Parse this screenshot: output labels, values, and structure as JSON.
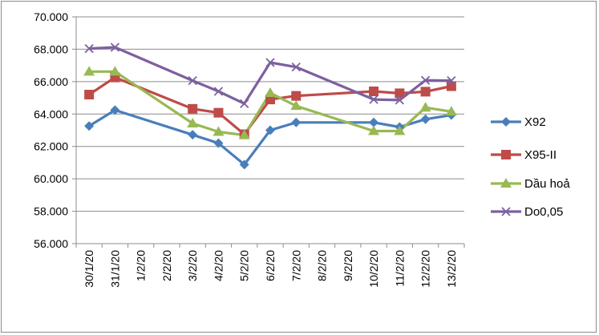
{
  "chart_data": {
    "type": "line",
    "title": "",
    "xlabel": "",
    "ylabel": "",
    "categories": [
      "30/1/20",
      "31/1/20",
      "1/2/20",
      "2/2/20",
      "3/2/20",
      "4/2/20",
      "5/2/20",
      "6/2/20",
      "7/2/20",
      "8/2/20",
      "9/2/20",
      "10/2/20",
      "11/2/20",
      "12/2/20",
      "13/2/20"
    ],
    "ylim": [
      56000,
      70000
    ],
    "ytick_labels": [
      "56.000",
      "58.000",
      "60.000",
      "62.000",
      "64.000",
      "66.000",
      "68.000",
      "70.000"
    ],
    "grid": true,
    "legend_position": "right",
    "series": [
      {
        "name": "X92",
        "color": "#4a7ebb",
        "marker": "diamond",
        "values": [
          63260,
          64240,
          null,
          null,
          62720,
          62200,
          60880,
          63000,
          63480,
          null,
          null,
          63480,
          63200,
          63680,
          63940
        ]
      },
      {
        "name": "X95-II",
        "color": "#be4b48",
        "marker": "square",
        "values": [
          65200,
          66260,
          null,
          null,
          64320,
          64080,
          62750,
          64900,
          65120,
          null,
          null,
          65400,
          65280,
          65380,
          65720
        ]
      },
      {
        "name": "Dầu hoả",
        "color": "#98b954",
        "marker": "triangle",
        "values": [
          66620,
          66620,
          null,
          null,
          63420,
          62900,
          62700,
          65300,
          64500,
          null,
          null,
          62950,
          62950,
          64400,
          64150
        ]
      },
      {
        "name": "Do0,05",
        "color": "#7d60a0",
        "marker": "x",
        "values": [
          68040,
          68120,
          null,
          null,
          66060,
          65400,
          64640,
          67180,
          66900,
          null,
          null,
          64900,
          64860,
          66080,
          66060
        ]
      }
    ]
  }
}
